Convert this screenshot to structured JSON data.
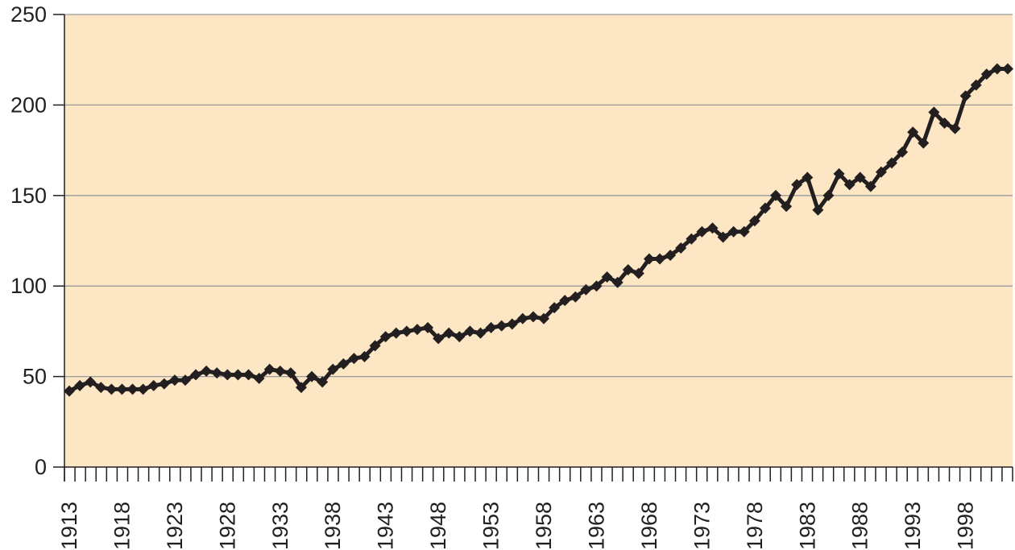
{
  "chart_data": {
    "type": "line",
    "title": "",
    "xlabel": "",
    "ylabel": "",
    "ylim": [
      0,
      250
    ],
    "yticks": [
      0,
      50,
      100,
      150,
      200,
      250
    ],
    "grid": true,
    "colors": {
      "plot_background": "#fce6c4",
      "line": "#231f20",
      "gridline": "#9a9a9a",
      "axis": "#231f20"
    },
    "marker": "diamond",
    "xtick_labels": [
      "1913",
      "1918",
      "1923",
      "1928",
      "1933",
      "1938",
      "1943",
      "1948",
      "1953",
      "1958",
      "1963",
      "1968",
      "1973",
      "1978",
      "1983",
      "1988",
      "1993",
      "1998"
    ],
    "x": [
      1913,
      1914,
      1915,
      1916,
      1917,
      1918,
      1919,
      1920,
      1921,
      1922,
      1923,
      1924,
      1925,
      1926,
      1927,
      1928,
      1929,
      1930,
      1931,
      1932,
      1933,
      1934,
      1935,
      1936,
      1937,
      1938,
      1939,
      1940,
      1941,
      1942,
      1943,
      1944,
      1945,
      1946,
      1947,
      1948,
      1949,
      1950,
      1951,
      1952,
      1953,
      1954,
      1955,
      1956,
      1957,
      1958,
      1959,
      1960,
      1961,
      1962,
      1963,
      1964,
      1965,
      1966,
      1967,
      1968,
      1969,
      1970,
      1971,
      1972,
      1973,
      1974,
      1975,
      1976,
      1977,
      1978,
      1979,
      1980,
      1981,
      1982,
      1983,
      1984,
      1985,
      1986,
      1987,
      1988,
      1989,
      1990,
      1991,
      1992,
      1993,
      1994,
      1995,
      1996,
      1997,
      1998,
      1999,
      2000,
      2001,
      2002
    ],
    "values": [
      42,
      45,
      47,
      44,
      43,
      43,
      43,
      43,
      45,
      46,
      48,
      48,
      51,
      53,
      52,
      51,
      51,
      51,
      49,
      54,
      53,
      52,
      44,
      50,
      47,
      54,
      57,
      60,
      61,
      67,
      72,
      74,
      75,
      76,
      77,
      71,
      74,
      72,
      75,
      74,
      77,
      78,
      79,
      82,
      83,
      82,
      88,
      92,
      94,
      98,
      100,
      105,
      102,
      109,
      107,
      115,
      115,
      117,
      121,
      126,
      130,
      132,
      127,
      130,
      130,
      136,
      143,
      150,
      144,
      156,
      160,
      142,
      150,
      162,
      156,
      160,
      155,
      163,
      168,
      174,
      185,
      179,
      196,
      190,
      187,
      205,
      211,
      217,
      220,
      220
    ]
  }
}
